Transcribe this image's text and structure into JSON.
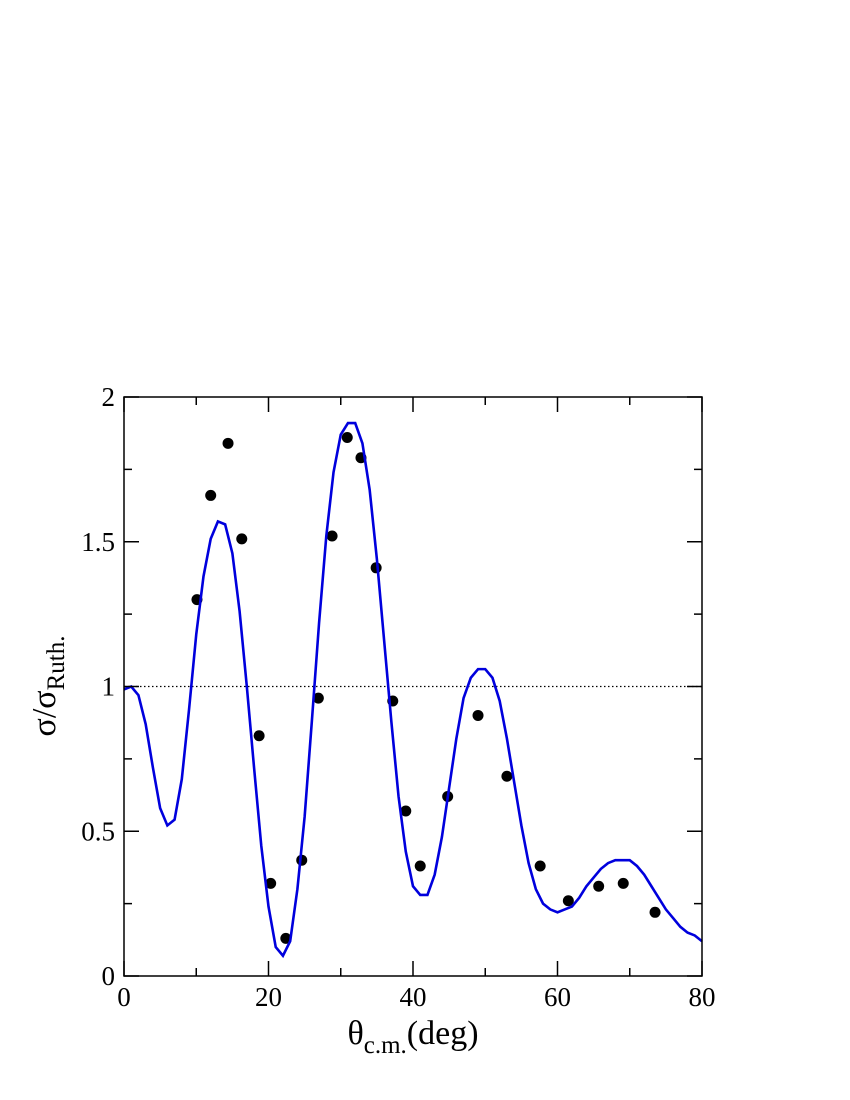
{
  "chart_data": {
    "type": "scatter",
    "x_label": {
      "main": "θ",
      "sub": "c.m.",
      "suffix": "(deg)"
    },
    "y_label": {
      "main": "σ/σ",
      "sub": "Ruth."
    },
    "xlim": [
      0,
      80
    ],
    "xticks": [
      0,
      20,
      40,
      60,
      80
    ],
    "xminorticks": [
      10,
      30,
      50,
      70
    ],
    "ylim": [
      0,
      2
    ],
    "yticks": [
      0,
      0.5,
      1,
      1.5,
      2
    ],
    "yminorticks": [
      0.25,
      0.75,
      1.25,
      1.75
    ],
    "hlines": [
      {
        "value": 1,
        "color": "#000000",
        "style": "dotted"
      }
    ],
    "series": [
      {
        "type": "scatter",
        "color": "#000000",
        "x": [
          10.1,
          12.0,
          14.4,
          16.3,
          18.7,
          20.3,
          22.4,
          24.6,
          26.9,
          28.8,
          30.9,
          32.8,
          34.9,
          37.2,
          39.0,
          41.0,
          44.8,
          49.0,
          53.0,
          57.6,
          61.5,
          65.7,
          69.1,
          73.5
        ],
        "values": [
          1.3,
          1.66,
          1.84,
          1.51,
          0.83,
          0.32,
          0.13,
          0.4,
          0.96,
          1.52,
          1.86,
          1.79,
          1.41,
          0.95,
          0.57,
          0.38,
          0.62,
          0.9,
          0.69,
          0.38,
          0.26,
          0.31,
          0.32,
          0.22
        ]
      },
      {
        "type": "line",
        "color": "#0000dd",
        "x": [
          0,
          1,
          2,
          3,
          4,
          5,
          6,
          7,
          8,
          9,
          10,
          11,
          12,
          13,
          14,
          15,
          16,
          17,
          18,
          19,
          20,
          21,
          22,
          23,
          24,
          25,
          26,
          27,
          28,
          29,
          30,
          31,
          32,
          33,
          34,
          35,
          36,
          37,
          38,
          39,
          40,
          41,
          42,
          43,
          44,
          45,
          46,
          47,
          48,
          49,
          50,
          51,
          52,
          53,
          54,
          55,
          56,
          57,
          58,
          59,
          60,
          61,
          62,
          63,
          64,
          65,
          66,
          67,
          68,
          69,
          70,
          71,
          72,
          73,
          74,
          75,
          76,
          77,
          78,
          79,
          80
        ],
        "values": [
          0.99,
          1.0,
          0.97,
          0.87,
          0.72,
          0.58,
          0.52,
          0.54,
          0.68,
          0.92,
          1.18,
          1.38,
          1.51,
          1.57,
          1.56,
          1.46,
          1.26,
          1.0,
          0.72,
          0.45,
          0.24,
          0.1,
          0.07,
          0.12,
          0.3,
          0.55,
          0.88,
          1.22,
          1.52,
          1.74,
          1.87,
          1.91,
          1.91,
          1.84,
          1.68,
          1.44,
          1.16,
          0.88,
          0.62,
          0.43,
          0.31,
          0.28,
          0.28,
          0.35,
          0.48,
          0.65,
          0.82,
          0.96,
          1.03,
          1.06,
          1.06,
          1.03,
          0.95,
          0.82,
          0.67,
          0.52,
          0.39,
          0.3,
          0.25,
          0.23,
          0.22,
          0.23,
          0.24,
          0.27,
          0.31,
          0.34,
          0.37,
          0.39,
          0.4,
          0.4,
          0.4,
          0.38,
          0.35,
          0.31,
          0.27,
          0.23,
          0.2,
          0.17,
          0.15,
          0.14,
          0.12
        ]
      }
    ]
  }
}
